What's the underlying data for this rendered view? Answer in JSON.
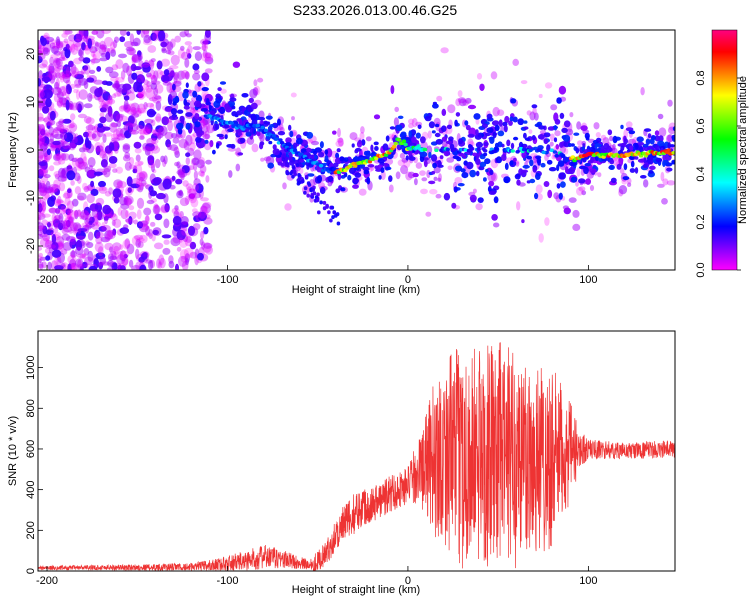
{
  "title": "S233.2026.013.00.46.G25",
  "chart_data": [
    {
      "type": "heatmap",
      "id": "spectrogram",
      "xlabel": "Height of straight line (km)",
      "ylabel": "Frequency (Hz)",
      "xlim": [
        -205,
        148
      ],
      "ylim": [
        -25,
        25
      ],
      "xticks": [
        -200,
        -100,
        0,
        100
      ],
      "yticks": [
        -20,
        -10,
        0,
        10,
        20
      ],
      "ridge_frequency": {
        "x": [
          -130,
          -110,
          -95,
          -85,
          -75,
          -65,
          -55,
          -45,
          -38,
          -30,
          -20,
          -10,
          -5,
          0,
          5,
          10,
          20,
          40,
          60,
          80,
          90,
          100,
          120,
          140,
          148
        ],
        "y": [
          10,
          7,
          5,
          5,
          3,
          0,
          -2,
          -4,
          -4.5,
          -3,
          -2,
          -0.5,
          2,
          0.5,
          0.5,
          0,
          0,
          0,
          0,
          0,
          -2,
          -1,
          -1,
          -0.5,
          -0.5
        ]
      },
      "colorbar": {
        "label": "Normalized spectral amplitude",
        "range": [
          0.0,
          1.0
        ],
        "ticks": [
          "0.0",
          "0.2",
          "0.4",
          "0.6",
          "0.8"
        ],
        "colors": [
          "#ff00ff",
          "#8000ff",
          "#0000ff",
          "#0080ff",
          "#00ffff",
          "#00ff80",
          "#00ff00",
          "#80ff00",
          "#ffff00",
          "#ff8000",
          "#ff0000",
          "#ff0080"
        ]
      }
    },
    {
      "type": "line",
      "id": "snr",
      "xlabel": "Height of straight line (km)",
      "ylabel": "SNR (10 * v/v)",
      "xlim": [
        -205,
        148
      ],
      "ylim": [
        0,
        1180
      ],
      "xticks": [
        -200,
        -100,
        0,
        100
      ],
      "yticks": [
        0,
        200,
        400,
        600,
        800,
        1000
      ],
      "color": "#ee3333",
      "envelope": {
        "x": [
          -205,
          -150,
          -120,
          -110,
          -100,
          -90,
          -80,
          -70,
          -60,
          -55,
          -50,
          -45,
          -40,
          -35,
          -30,
          -25,
          -20,
          -15,
          -10,
          -5,
          0,
          5,
          10,
          15,
          20,
          25,
          30,
          40,
          50,
          60,
          70,
          80,
          90,
          95,
          100,
          120,
          148
        ],
        "base": [
          15,
          18,
          20,
          25,
          35,
          50,
          70,
          60,
          40,
          30,
          50,
          90,
          180,
          230,
          280,
          320,
          330,
          350,
          380,
          400,
          420,
          480,
          520,
          560,
          580,
          580,
          560,
          560,
          580,
          560,
          560,
          560,
          580,
          600,
          600,
          590,
          600
        ],
        "amp": [
          10,
          15,
          20,
          30,
          40,
          50,
          60,
          50,
          30,
          30,
          50,
          60,
          80,
          100,
          100,
          100,
          90,
          90,
          100,
          90,
          100,
          150,
          250,
          400,
          450,
          500,
          550,
          550,
          550,
          550,
          500,
          450,
          250,
          100,
          50,
          40,
          45
        ]
      }
    }
  ]
}
